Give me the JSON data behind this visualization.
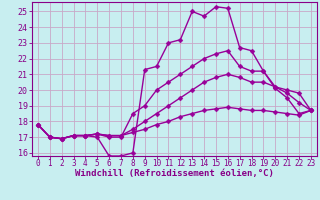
{
  "bg_color": "#c8eef0",
  "grid_color": "#c8a8c8",
  "line_color": "#990099",
  "marker": "D",
  "markersize": 2.5,
  "linewidth": 1.0,
  "xlabel": "Windchill (Refroidissement éolien,°C)",
  "xlabel_fontsize": 6.5,
  "tick_fontsize": 6.0,
  "xlim": [
    -0.5,
    23.5
  ],
  "ylim": [
    15.8,
    25.6
  ],
  "yticks": [
    16,
    17,
    18,
    19,
    20,
    21,
    22,
    23,
    24,
    25
  ],
  "xticks": [
    0,
    1,
    2,
    3,
    4,
    5,
    6,
    7,
    8,
    9,
    10,
    11,
    12,
    13,
    14,
    15,
    16,
    17,
    18,
    19,
    20,
    21,
    22,
    23
  ],
  "series": [
    [
      17.8,
      17.0,
      16.9,
      17.1,
      17.1,
      17.0,
      15.8,
      15.8,
      16.0,
      21.3,
      21.5,
      23.0,
      23.2,
      25.0,
      24.7,
      25.3,
      25.2,
      22.7,
      22.5,
      21.2,
      20.1,
      19.5,
      18.5,
      18.7
    ],
    [
      17.8,
      17.0,
      16.9,
      17.1,
      17.1,
      17.2,
      17.0,
      17.0,
      18.5,
      19.0,
      20.0,
      20.5,
      21.0,
      21.5,
      22.0,
      22.3,
      22.5,
      21.5,
      21.2,
      21.2,
      20.2,
      19.8,
      19.2,
      18.7
    ],
    [
      17.8,
      17.0,
      16.9,
      17.1,
      17.1,
      17.2,
      17.1,
      17.1,
      17.5,
      18.0,
      18.5,
      19.0,
      19.5,
      20.0,
      20.5,
      20.8,
      21.0,
      20.8,
      20.5,
      20.5,
      20.2,
      20.0,
      19.8,
      18.7
    ],
    [
      17.8,
      17.0,
      16.9,
      17.1,
      17.1,
      17.2,
      17.1,
      17.1,
      17.3,
      17.5,
      17.8,
      18.0,
      18.3,
      18.5,
      18.7,
      18.8,
      18.9,
      18.8,
      18.7,
      18.7,
      18.6,
      18.5,
      18.4,
      18.7
    ]
  ]
}
